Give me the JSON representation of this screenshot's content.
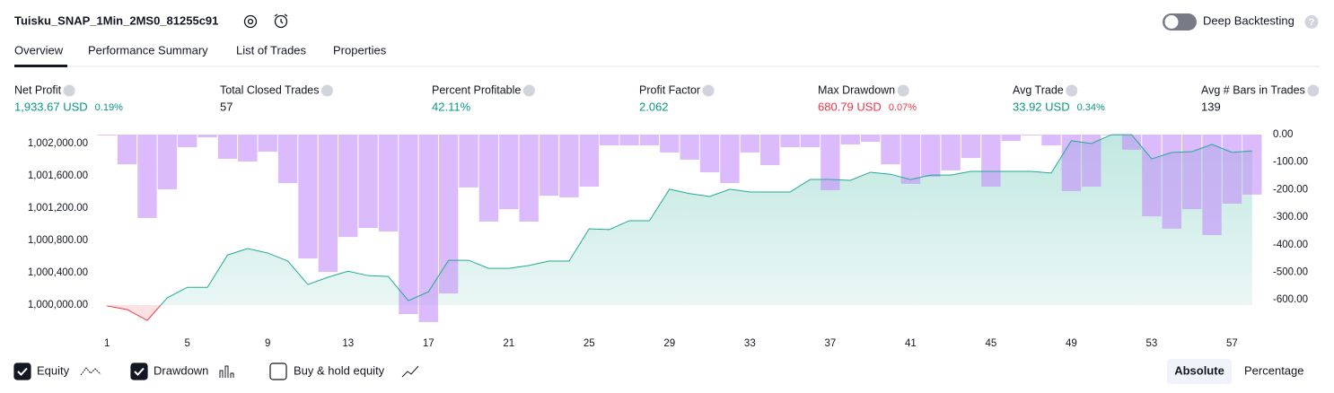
{
  "header": {
    "title": "Tuisku_SNAP_1Min_2MS0_81255c91",
    "toggle_label": "Deep Backtesting"
  },
  "tabs": [
    "Overview",
    "Performance Summary",
    "List of Trades",
    "Properties"
  ],
  "metrics": [
    {
      "label": "Net Profit",
      "value": "1,933.67 USD",
      "percent": "0.19%",
      "color": "#089981"
    },
    {
      "label": "Total Closed Trades",
      "value": "57",
      "color": "#131722"
    },
    {
      "label": "Percent Profitable",
      "value": "42.11%",
      "color": "#089981"
    },
    {
      "label": "Profit Factor",
      "value": "2.062",
      "color": "#089981"
    },
    {
      "label": "Max Drawdown",
      "value": "680.79 USD",
      "percent": "0.07%",
      "color": "#f23645"
    },
    {
      "label": "Avg Trade",
      "value": "33.92 USD",
      "percent": "0.34%",
      "color": "#089981"
    },
    {
      "label": "Avg # Bars in Trades",
      "value": "139",
      "color": "#131722"
    }
  ],
  "chart_data": {
    "type": "equity-drawdown",
    "x": [
      1,
      2,
      3,
      4,
      5,
      6,
      7,
      8,
      9,
      10,
      11,
      12,
      13,
      14,
      15,
      16,
      17,
      18,
      19,
      20,
      21,
      22,
      23,
      24,
      25,
      26,
      27,
      28,
      29,
      30,
      31,
      32,
      33,
      34,
      35,
      36,
      37,
      38,
      39,
      40,
      41,
      42,
      43,
      44,
      45,
      46,
      47,
      48,
      49,
      50,
      51,
      52,
      53,
      54,
      55,
      56,
      57,
      58
    ],
    "xlim": [
      0.5,
      58.5
    ],
    "xticks": [
      1,
      5,
      9,
      13,
      17,
      21,
      25,
      29,
      33,
      37,
      41,
      45,
      49,
      53,
      57
    ],
    "series": [
      {
        "name": "Equity",
        "color": "#22ab94",
        "visible": true,
        "values": [
          999990,
          999945,
          999810,
          1000090,
          1000220,
          1000220,
          1000620,
          1000700,
          1000645,
          1000545,
          1000255,
          1000345,
          1000420,
          1000365,
          1000355,
          1000055,
          1000165,
          1000555,
          1000555,
          1000455,
          1000455,
          1000490,
          1000545,
          1000545,
          1000945,
          1000935,
          1001045,
          1001045,
          1001435,
          1001380,
          1001345,
          1001435,
          1001400,
          1001400,
          1001400,
          1001555,
          1001555,
          1001545,
          1001645,
          1001620,
          1001555,
          1001610,
          1001610,
          1001655,
          1001655,
          1001655,
          1001655,
          1001635,
          1002035,
          1002000,
          1002110,
          1002110,
          1001810,
          1001890,
          1001900,
          1001990,
          1001890,
          1001910
        ]
      },
      {
        "name": "Drawdown",
        "color": "#c38dfa",
        "axis": "y2",
        "visible": true,
        "values": [
          -3,
          -108,
          -303,
          -199,
          -46,
          -10,
          -88,
          -98,
          -62,
          -176,
          -450,
          -499,
          -372,
          -339,
          -352,
          -652,
          -681,
          -577,
          -192,
          -316,
          -271,
          -316,
          -222,
          -228,
          -189,
          -39,
          -39,
          -39,
          -65,
          -91,
          -137,
          -176,
          -65,
          -111,
          -46,
          -46,
          -202,
          -36,
          -26,
          -108,
          -179,
          -153,
          -130,
          -85,
          -189,
          -23,
          -3,
          -39,
          -205,
          -189,
          -3,
          -55,
          -297,
          -342,
          -271,
          -365,
          -251,
          -218
        ]
      }
    ],
    "ylim": [
      999756,
      1002111
    ],
    "yticks": [
      {
        "value": 1000000,
        "label": "1,000,000.00"
      },
      {
        "value": 1000400,
        "label": "1,000,400.00"
      },
      {
        "value": 1000800,
        "label": "1,000,800.00"
      },
      {
        "value": 1001200,
        "label": "1,001,200.00"
      },
      {
        "value": 1001600,
        "label": "1,001,600.00"
      },
      {
        "value": 1002000,
        "label": "1,002,000.00"
      }
    ],
    "y2lim": [
      -691,
      0
    ],
    "y2ticks": [
      {
        "value": 0,
        "label": "0.00"
      },
      {
        "value": -100,
        "label": "-100.00"
      },
      {
        "value": -200,
        "label": "-200.00"
      },
      {
        "value": -300,
        "label": "-300.00"
      },
      {
        "value": -400,
        "label": "-400.00"
      },
      {
        "value": -500,
        "label": "-500.00"
      },
      {
        "value": -600,
        "label": "-600.00"
      }
    ]
  },
  "controls": {
    "buy_hold": "Buy & hold equity",
    "buy_hold_checked": false,
    "modes": [
      "Absolute",
      "Percentage"
    ],
    "active_mode": 0
  }
}
